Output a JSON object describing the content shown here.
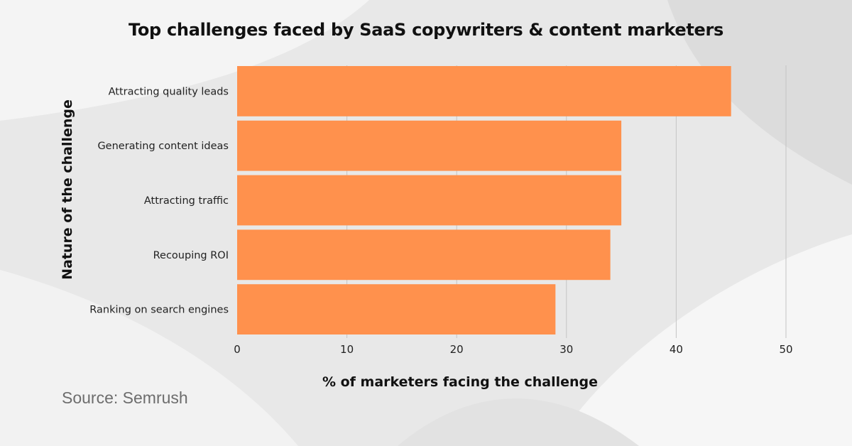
{
  "chart_data": {
    "type": "bar",
    "orientation": "horizontal",
    "title": "Top challenges faced by SaaS copywriters & content marketers",
    "xlabel": "% of marketers facing the challenge",
    "ylabel": "Nature of the challenge",
    "categories": [
      "Attracting quality leads",
      "Generating content ideas",
      "Attracting traffic",
      "Recouping ROI",
      "Ranking on search engines"
    ],
    "values": [
      45,
      35,
      35,
      34,
      29
    ],
    "xlim": [
      0,
      50
    ],
    "xticks": [
      0,
      10,
      20,
      30,
      40,
      50
    ],
    "grid": "vertical",
    "bar_color": "#ff914d"
  },
  "source": "Source: Semrush"
}
